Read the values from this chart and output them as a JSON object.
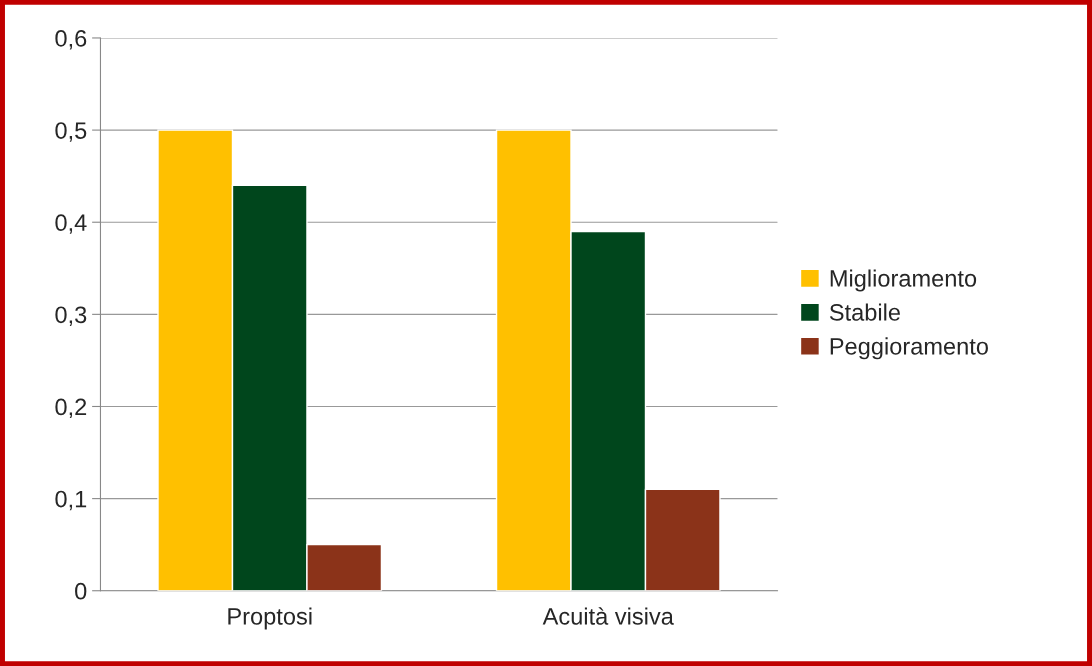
{
  "chart_data": {
    "type": "bar",
    "categories": [
      "Proptosi",
      "Acuità visiva"
    ],
    "series": [
      {
        "name": "Miglioramento",
        "color": "#ffc000",
        "values": [
          0.5,
          0.5
        ]
      },
      {
        "name": "Stabile",
        "color": "#00461c",
        "values": [
          0.44,
          0.39
        ]
      },
      {
        "name": "Peggioramento",
        "color": "#8b3319",
        "values": [
          0.05,
          0.11
        ]
      }
    ],
    "ylim": [
      0,
      0.6
    ],
    "yticks": [
      0,
      {
        "value": 0.1,
        "label": "0,1"
      },
      {
        "value": 0.2,
        "label": "0,2"
      },
      {
        "value": 0.3,
        "label": "0,3"
      },
      {
        "value": 0.4,
        "label": "0,4"
      },
      {
        "value": 0.5,
        "label": "0,5"
      },
      {
        "value": 0.6,
        "label": "0,6"
      }
    ],
    "grid": "y",
    "legend": "right"
  }
}
